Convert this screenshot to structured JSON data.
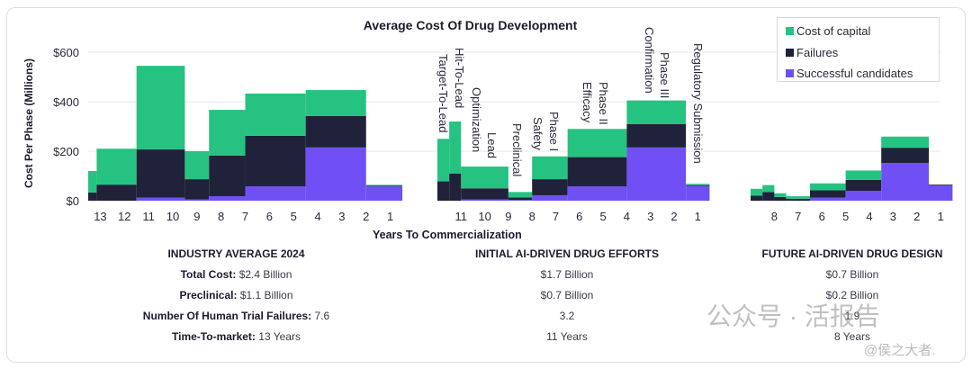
{
  "chart_data": {
    "type": "bar",
    "stacked": true,
    "title": "Average Cost Of Drug Development",
    "xlabel": "Years To Commercialization",
    "ylabel": "Cost Per Phase (Millions)",
    "ylim": [
      0,
      650
    ],
    "yticks": [
      {
        "value": 0,
        "label": "$0"
      },
      {
        "value": 200,
        "label": "$200"
      },
      {
        "value": 400,
        "label": "$400"
      },
      {
        "value": 600,
        "label": "$600"
      }
    ],
    "grid": true,
    "legend_position": "top-right",
    "series": [
      {
        "name": "Cost of capital",
        "color": "#26c281"
      },
      {
        "name": "Failures",
        "color": "#20223a"
      },
      {
        "name": "Successful candidates",
        "color": "#7050f5"
      }
    ],
    "groups": [
      {
        "name": "Industry Average 2024",
        "tick_labels": [
          "13",
          "12",
          "11",
          "10",
          "9",
          "8",
          "7",
          "6",
          "5",
          "4",
          "3",
          "2",
          "1"
        ],
        "bars": [
          {
            "start": 13.5,
            "end": 13.15,
            "success": 0,
            "failures": 33,
            "capital": 87
          },
          {
            "start": 13.15,
            "end": 11.5,
            "success": 0,
            "failures": 65,
            "capital": 145
          },
          {
            "start": 11.5,
            "end": 9.5,
            "success": 12,
            "failures": 195,
            "capital": 338
          },
          {
            "start": 9.5,
            "end": 8.5,
            "success": 5,
            "failures": 82,
            "capital": 113
          },
          {
            "start": 8.5,
            "end": 7.0,
            "success": 18,
            "failures": 164,
            "capital": 185
          },
          {
            "start": 7.0,
            "end": 4.5,
            "success": 58,
            "failures": 204,
            "capital": 171
          },
          {
            "start": 4.5,
            "end": 2.0,
            "success": 215,
            "failures": 127,
            "capital": 105
          },
          {
            "start": 2.0,
            "end": 0.5,
            "success": 58,
            "failures": 2,
            "capital": 4
          }
        ]
      },
      {
        "name": "Initial AI-Driven Drug Efforts",
        "tick_labels": [
          "11",
          "10",
          "9",
          "8",
          "7",
          "6",
          "5",
          "4",
          "3",
          "2",
          "1"
        ],
        "phase_labels": [
          "Target-To-Lead",
          "Hit-To-Lead",
          "Lead Optimization",
          "Preclinical",
          "Phase I Safety",
          "Phase II Efficacy",
          "Phase III Confirmation",
          "Regulatory Submission"
        ],
        "bars": [
          {
            "phase": "Target-To-Lead",
            "start": 12.0,
            "end": 11.5,
            "success": 0,
            "failures": 78,
            "capital": 172
          },
          {
            "phase": "Hit-To-Lead",
            "start": 11.5,
            "end": 11.0,
            "success": 0,
            "failures": 110,
            "capital": 210
          },
          {
            "phase": "Lead Optimization",
            "start": 11.0,
            "end": 9.0,
            "success": 5,
            "failures": 45,
            "capital": 88
          },
          {
            "phase": "Preclinical",
            "start": 9.0,
            "end": 8.0,
            "success": 3,
            "failures": 10,
            "capital": 22
          },
          {
            "phase": "Phase I Safety",
            "start": 8.0,
            "end": 6.5,
            "success": 22,
            "failures": 65,
            "capital": 92
          },
          {
            "phase": "Phase II Efficacy",
            "start": 6.5,
            "end": 4.0,
            "success": 58,
            "failures": 118,
            "capital": 114
          },
          {
            "phase": "Phase III Confirmation",
            "start": 4.0,
            "end": 1.5,
            "success": 215,
            "failures": 95,
            "capital": 95
          },
          {
            "phase": "Regulatory Submission",
            "start": 1.5,
            "end": 0.5,
            "success": 60,
            "failures": 3,
            "capital": 5
          }
        ]
      },
      {
        "name": "Future AI-Driven Drug Design",
        "tick_labels": [
          "8",
          "7",
          "6",
          "5",
          "4",
          "3",
          "2",
          "1"
        ],
        "bars": [
          {
            "start": 9.0,
            "end": 8.5,
            "success": 0,
            "failures": 20,
            "capital": 28
          },
          {
            "start": 8.5,
            "end": 8.0,
            "success": 0,
            "failures": 35,
            "capital": 28
          },
          {
            "start": 8.0,
            "end": 7.5,
            "success": 0,
            "failures": 15,
            "capital": 15
          },
          {
            "start": 7.5,
            "end": 6.5,
            "success": 0,
            "failures": 8,
            "capital": 10
          },
          {
            "start": 6.5,
            "end": 5.0,
            "success": 12,
            "failures": 30,
            "capital": 28
          },
          {
            "start": 5.0,
            "end": 3.5,
            "success": 40,
            "failures": 44,
            "capital": 38
          },
          {
            "start": 3.5,
            "end": 1.5,
            "success": 152,
            "failures": 62,
            "capital": 45
          },
          {
            "start": 1.5,
            "end": 0.5,
            "success": 62,
            "failures": 3,
            "capital": 0
          }
        ]
      }
    ]
  },
  "stats": {
    "industry": {
      "heading": "INDUSTRY AVERAGE 2024",
      "rows": [
        {
          "label": "Total Cost:",
          "value": "$2.4 Billion"
        },
        {
          "label": "Preclinical:",
          "value": "$1.1 Billion"
        },
        {
          "label": "Number Of Human Trial Failures:",
          "value": "7.6"
        },
        {
          "label": "Time-To-market:",
          "value": "13 Years"
        }
      ]
    },
    "initial_ai": {
      "heading": "INITIAL AI-DRIVEN DRUG EFFORTS",
      "rows": [
        "$1.7 Billion",
        "$0.7 Billion",
        "3.2",
        "11 Years"
      ]
    },
    "future_ai": {
      "heading": "FUTURE AI-DRIVEN DRUG DESIGN",
      "rows": [
        "$0.7 Billion",
        "$0.2 Billion",
        "1.9",
        "8 Years"
      ]
    }
  },
  "watermark": {
    "text": "公众号 · 活报告",
    "handle": "@侯之大者."
  }
}
